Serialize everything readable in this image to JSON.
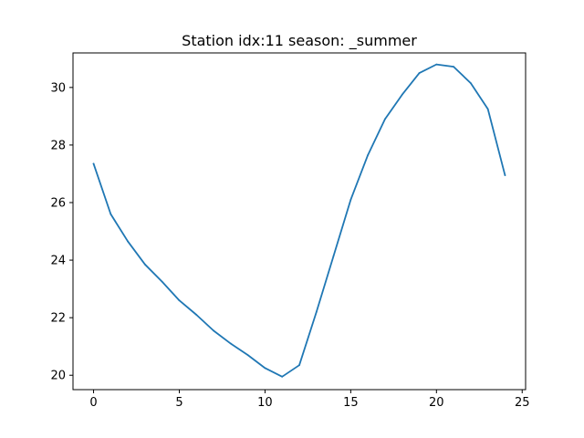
{
  "chart_data": {
    "type": "line",
    "title": "Station idx:11 season: _summer",
    "xlabel": "",
    "ylabel": "",
    "xlim": [
      -1.2,
      25.2
    ],
    "ylim": [
      19.5,
      31.2
    ],
    "xticks": [
      0,
      5,
      10,
      15,
      20,
      25
    ],
    "yticks": [
      20,
      22,
      24,
      26,
      28,
      30
    ],
    "grid": false,
    "series": [
      {
        "color": "#1f77b4",
        "x": [
          0,
          1,
          2,
          3,
          4,
          5,
          6,
          7,
          8,
          9,
          10,
          11,
          12,
          13,
          14,
          15,
          16,
          17,
          18,
          19,
          20,
          21,
          22,
          23,
          24
        ],
        "y": [
          27.35,
          25.6,
          24.65,
          23.85,
          23.25,
          22.6,
          22.1,
          21.55,
          21.1,
          20.7,
          20.25,
          19.95,
          20.35,
          22.2,
          24.15,
          26.1,
          27.65,
          28.9,
          29.75,
          30.5,
          30.8,
          30.72,
          30.15,
          29.25,
          26.95
        ]
      }
    ]
  }
}
